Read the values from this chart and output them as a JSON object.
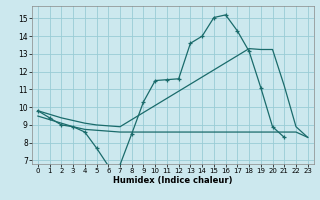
{
  "bg_color": "#cce8ee",
  "grid_color": "#99ccd5",
  "line_color": "#1a6b6b",
  "xlabel": "Humidex (Indice chaleur)",
  "xlim": [
    -0.5,
    23.5
  ],
  "ylim": [
    6.8,
    15.7
  ],
  "xticks": [
    0,
    1,
    2,
    3,
    4,
    5,
    6,
    7,
    8,
    9,
    10,
    11,
    12,
    13,
    14,
    15,
    16,
    17,
    18,
    19,
    20,
    21,
    22,
    23
  ],
  "yticks": [
    7,
    8,
    9,
    10,
    11,
    12,
    13,
    14,
    15
  ],
  "curve1_x": [
    0,
    1,
    2,
    3,
    4,
    5,
    6,
    7,
    8,
    9,
    10,
    11,
    12,
    13,
    14,
    15,
    16,
    17,
    18,
    19,
    20,
    21
  ],
  "curve1_y": [
    9.8,
    9.4,
    9.0,
    8.9,
    8.6,
    7.7,
    6.7,
    6.75,
    8.5,
    10.3,
    11.5,
    11.55,
    11.6,
    13.6,
    14.0,
    15.05,
    15.2,
    14.3,
    null,
    null,
    null,
    null
  ],
  "curve1_markers": true,
  "curve2_x": [
    0,
    1,
    2,
    3,
    4,
    5,
    6,
    7,
    8,
    9,
    10,
    11,
    12,
    13,
    14,
    15,
    16,
    17,
    18,
    19,
    20,
    21,
    22,
    23
  ],
  "curve2_y": [
    9.8,
    9.6,
    9.4,
    9.25,
    9.1,
    9.0,
    8.95,
    8.9,
    9.3,
    9.7,
    10.1,
    10.5,
    10.9,
    11.3,
    11.7,
    12.1,
    12.5,
    12.9,
    13.3,
    13.25,
    13.25,
    11.2,
    8.9,
    8.3
  ],
  "curve3_x": [
    0,
    1,
    2,
    3,
    4,
    5,
    6,
    7,
    8,
    9,
    10,
    11,
    12,
    13,
    14,
    15,
    16,
    17,
    18,
    19,
    20,
    21,
    22,
    23
  ],
  "curve3_y": [
    9.5,
    9.3,
    9.1,
    8.9,
    8.75,
    8.7,
    8.65,
    8.6,
    8.6,
    8.6,
    8.6,
    8.6,
    8.6,
    8.6,
    8.6,
    8.6,
    8.6,
    8.6,
    8.6,
    8.6,
    8.6,
    8.6,
    8.6,
    8.3
  ],
  "curve_zigzag_x": [
    0,
    1,
    2,
    3,
    4,
    5,
    6,
    7,
    8,
    9,
    10,
    11,
    12,
    13,
    14,
    15,
    16,
    17,
    18,
    19,
    20,
    21
  ],
  "curve_zigzag_y": [
    9.8,
    9.4,
    9.0,
    8.9,
    8.6,
    7.7,
    6.7,
    6.75,
    8.5,
    10.3,
    11.5,
    11.55,
    11.6,
    13.6,
    14.0,
    15.05,
    15.2,
    14.3,
    13.15,
    11.1,
    8.9,
    8.3
  ]
}
